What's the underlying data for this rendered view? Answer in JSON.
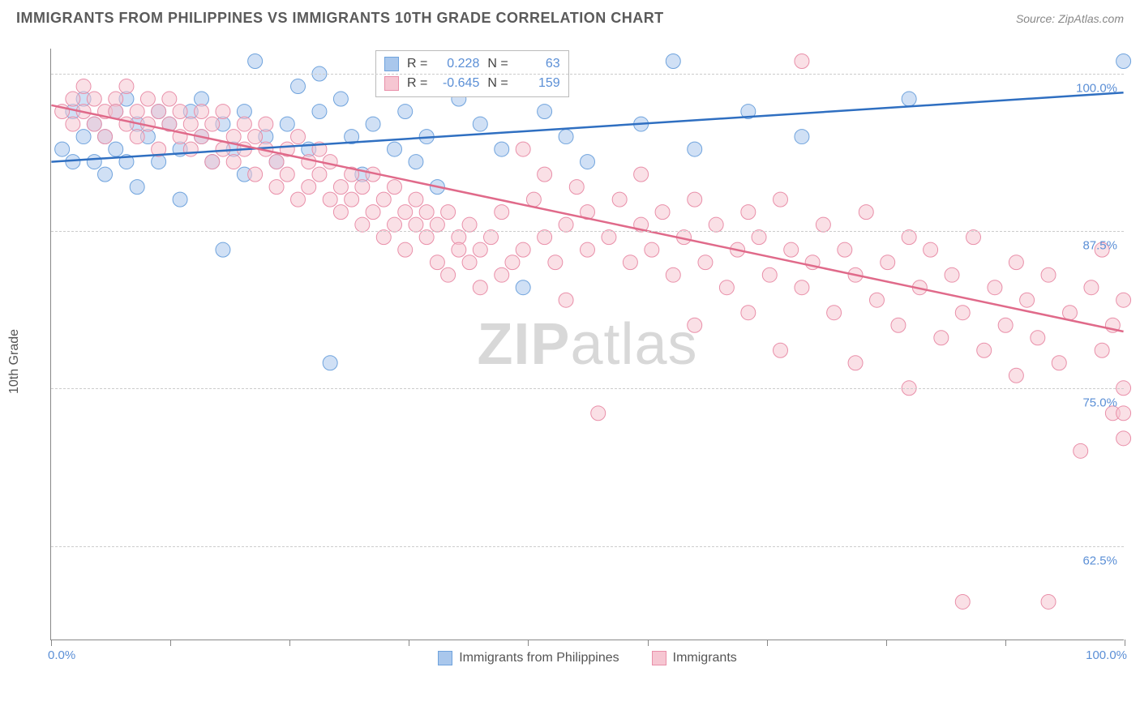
{
  "title": "IMMIGRANTS FROM PHILIPPINES VS IMMIGRANTS 10TH GRADE CORRELATION CHART",
  "source": "Source: ZipAtlas.com",
  "ylabel": "10th Grade",
  "watermark_a": "ZIP",
  "watermark_b": "atlas",
  "chart": {
    "type": "scatter",
    "background_color": "#ffffff",
    "grid_color": "#cccccc",
    "axis_color": "#888888",
    "label_color": "#5b8fd6",
    "xlim": [
      0,
      100
    ],
    "ylim": [
      55,
      102
    ],
    "yticks": [
      62.5,
      75.0,
      87.5,
      100.0
    ],
    "ytick_labels": [
      "62.5%",
      "75.0%",
      "87.5%",
      "100.0%"
    ],
    "xticks": [
      0,
      11.1,
      22.2,
      33.3,
      44.4,
      55.6,
      66.7,
      77.8,
      88.9,
      100
    ],
    "xtick_labels_left": "0.0%",
    "xtick_labels_right": "100.0%",
    "marker_radius": 9,
    "marker_opacity": 0.55,
    "line_width": 2.5,
    "series": [
      {
        "name": "Immigrants from Philippines",
        "color_fill": "#a9c7ec",
        "color_stroke": "#6fa3dd",
        "line_color": "#2f6fc1",
        "R": "0.228",
        "N": "63",
        "regression": {
          "x1": 0,
          "y1": 93.0,
          "x2": 100,
          "y2": 98.5
        },
        "points": [
          [
            1,
            94
          ],
          [
            2,
            93
          ],
          [
            2,
            97
          ],
          [
            3,
            95
          ],
          [
            3,
            98
          ],
          [
            4,
            93
          ],
          [
            4,
            96
          ],
          [
            5,
            92
          ],
          [
            5,
            95
          ],
          [
            6,
            97
          ],
          [
            6,
            94
          ],
          [
            7,
            93
          ],
          [
            7,
            98
          ],
          [
            8,
            96
          ],
          [
            8,
            91
          ],
          [
            9,
            95
          ],
          [
            10,
            93
          ],
          [
            10,
            97
          ],
          [
            11,
            96
          ],
          [
            12,
            94
          ],
          [
            12,
            90
          ],
          [
            13,
            97
          ],
          [
            14,
            95
          ],
          [
            14,
            98
          ],
          [
            15,
            93
          ],
          [
            16,
            96
          ],
          [
            16,
            86
          ],
          [
            17,
            94
          ],
          [
            18,
            97
          ],
          [
            18,
            92
          ],
          [
            19,
            101
          ],
          [
            20,
            95
          ],
          [
            21,
            93
          ],
          [
            22,
            96
          ],
          [
            23,
            99
          ],
          [
            24,
            94
          ],
          [
            25,
            97
          ],
          [
            25,
            100
          ],
          [
            26,
            77
          ],
          [
            27,
            98
          ],
          [
            28,
            95
          ],
          [
            29,
            92
          ],
          [
            30,
            96
          ],
          [
            31,
            99
          ],
          [
            32,
            94
          ],
          [
            33,
            97
          ],
          [
            34,
            93
          ],
          [
            35,
            95
          ],
          [
            36,
            91
          ],
          [
            38,
            98
          ],
          [
            40,
            96
          ],
          [
            42,
            94
          ],
          [
            44,
            83
          ],
          [
            46,
            97
          ],
          [
            48,
            95
          ],
          [
            50,
            93
          ],
          [
            55,
            96
          ],
          [
            58,
            101
          ],
          [
            60,
            94
          ],
          [
            65,
            97
          ],
          [
            70,
            95
          ],
          [
            80,
            98
          ],
          [
            100,
            101
          ]
        ]
      },
      {
        "name": "Immigrants",
        "color_fill": "#f6c6d2",
        "color_stroke": "#e98fa9",
        "line_color": "#e06a8a",
        "R": "-0.645",
        "N": "159",
        "regression": {
          "x1": 0,
          "y1": 97.5,
          "x2": 100,
          "y2": 79.5
        },
        "points": [
          [
            1,
            97
          ],
          [
            2,
            98
          ],
          [
            2,
            96
          ],
          [
            3,
            97
          ],
          [
            3,
            99
          ],
          [
            4,
            96
          ],
          [
            4,
            98
          ],
          [
            5,
            97
          ],
          [
            5,
            95
          ],
          [
            6,
            98
          ],
          [
            6,
            97
          ],
          [
            7,
            96
          ],
          [
            7,
            99
          ],
          [
            8,
            97
          ],
          [
            8,
            95
          ],
          [
            9,
            98
          ],
          [
            9,
            96
          ],
          [
            10,
            97
          ],
          [
            10,
            94
          ],
          [
            11,
            96
          ],
          [
            11,
            98
          ],
          [
            12,
            95
          ],
          [
            12,
            97
          ],
          [
            13,
            96
          ],
          [
            13,
            94
          ],
          [
            14,
            97
          ],
          [
            14,
            95
          ],
          [
            15,
            93
          ],
          [
            15,
            96
          ],
          [
            16,
            94
          ],
          [
            16,
            97
          ],
          [
            17,
            95
          ],
          [
            17,
            93
          ],
          [
            18,
            96
          ],
          [
            18,
            94
          ],
          [
            19,
            92
          ],
          [
            19,
            95
          ],
          [
            20,
            94
          ],
          [
            20,
            96
          ],
          [
            21,
            93
          ],
          [
            21,
            91
          ],
          [
            22,
            94
          ],
          [
            22,
            92
          ],
          [
            23,
            95
          ],
          [
            23,
            90
          ],
          [
            24,
            93
          ],
          [
            24,
            91
          ],
          [
            25,
            92
          ],
          [
            25,
            94
          ],
          [
            26,
            90
          ],
          [
            26,
            93
          ],
          [
            27,
            91
          ],
          [
            27,
            89
          ],
          [
            28,
            92
          ],
          [
            28,
            90
          ],
          [
            29,
            88
          ],
          [
            29,
            91
          ],
          [
            30,
            89
          ],
          [
            30,
            92
          ],
          [
            31,
            90
          ],
          [
            31,
            87
          ],
          [
            32,
            88
          ],
          [
            32,
            91
          ],
          [
            33,
            89
          ],
          [
            33,
            86
          ],
          [
            34,
            90
          ],
          [
            34,
            88
          ],
          [
            35,
            87
          ],
          [
            35,
            89
          ],
          [
            36,
            85
          ],
          [
            36,
            88
          ],
          [
            37,
            89
          ],
          [
            37,
            84
          ],
          [
            38,
            87
          ],
          [
            38,
            86
          ],
          [
            39,
            85
          ],
          [
            39,
            88
          ],
          [
            40,
            83
          ],
          [
            40,
            86
          ],
          [
            41,
            87
          ],
          [
            42,
            84
          ],
          [
            42,
            89
          ],
          [
            43,
            85
          ],
          [
            44,
            86
          ],
          [
            44,
            94
          ],
          [
            45,
            90
          ],
          [
            46,
            87
          ],
          [
            46,
            92
          ],
          [
            47,
            85
          ],
          [
            48,
            88
          ],
          [
            48,
            82
          ],
          [
            49,
            91
          ],
          [
            50,
            86
          ],
          [
            50,
            89
          ],
          [
            51,
            73
          ],
          [
            52,
            87
          ],
          [
            53,
            90
          ],
          [
            54,
            85
          ],
          [
            55,
            88
          ],
          [
            55,
            92
          ],
          [
            56,
            86
          ],
          [
            57,
            89
          ],
          [
            58,
            84
          ],
          [
            59,
            87
          ],
          [
            60,
            90
          ],
          [
            60,
            80
          ],
          [
            61,
            85
          ],
          [
            62,
            88
          ],
          [
            63,
            83
          ],
          [
            64,
            86
          ],
          [
            65,
            89
          ],
          [
            65,
            81
          ],
          [
            66,
            87
          ],
          [
            67,
            84
          ],
          [
            68,
            90
          ],
          [
            68,
            78
          ],
          [
            69,
            86
          ],
          [
            70,
            83
          ],
          [
            70,
            101
          ],
          [
            71,
            85
          ],
          [
            72,
            88
          ],
          [
            73,
            81
          ],
          [
            74,
            86
          ],
          [
            75,
            84
          ],
          [
            75,
            77
          ],
          [
            76,
            89
          ],
          [
            77,
            82
          ],
          [
            78,
            85
          ],
          [
            79,
            80
          ],
          [
            80,
            87
          ],
          [
            80,
            75
          ],
          [
            81,
            83
          ],
          [
            82,
            86
          ],
          [
            83,
            79
          ],
          [
            84,
            84
          ],
          [
            85,
            81
          ],
          [
            85,
            58
          ],
          [
            86,
            87
          ],
          [
            87,
            78
          ],
          [
            88,
            83
          ],
          [
            89,
            80
          ],
          [
            90,
            85
          ],
          [
            90,
            76
          ],
          [
            91,
            82
          ],
          [
            92,
            79
          ],
          [
            93,
            84
          ],
          [
            93,
            58
          ],
          [
            94,
            77
          ],
          [
            95,
            81
          ],
          [
            96,
            70
          ],
          [
            97,
            83
          ],
          [
            98,
            78
          ],
          [
            98,
            86
          ],
          [
            99,
            73
          ],
          [
            99,
            80
          ],
          [
            100,
            82
          ],
          [
            100,
            75
          ],
          [
            100,
            71
          ],
          [
            100,
            73
          ]
        ]
      }
    ]
  },
  "legend": {
    "series1_label": "Immigrants from Philippines",
    "series2_label": "Immigrants"
  },
  "stats_labels": {
    "R": "R =",
    "N": "N ="
  }
}
